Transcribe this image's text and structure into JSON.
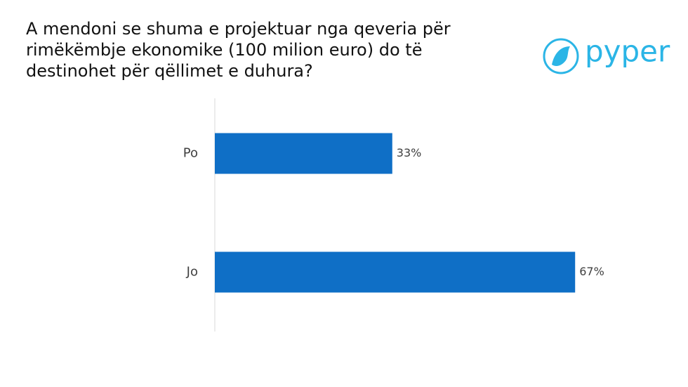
{
  "brand": "pyper",
  "chart_data": {
    "type": "hbar",
    "title": "A mendoni se shuma e projektuar nga qeveria për rimëkëmbje ekonomike (100 milion euro) do të destinohet për qëllimet e duhura?",
    "categories": [
      "Po",
      "Jo"
    ],
    "values": [
      33,
      67
    ],
    "value_labels": [
      "33%",
      "67%"
    ],
    "color": "#0f6fc6"
  }
}
